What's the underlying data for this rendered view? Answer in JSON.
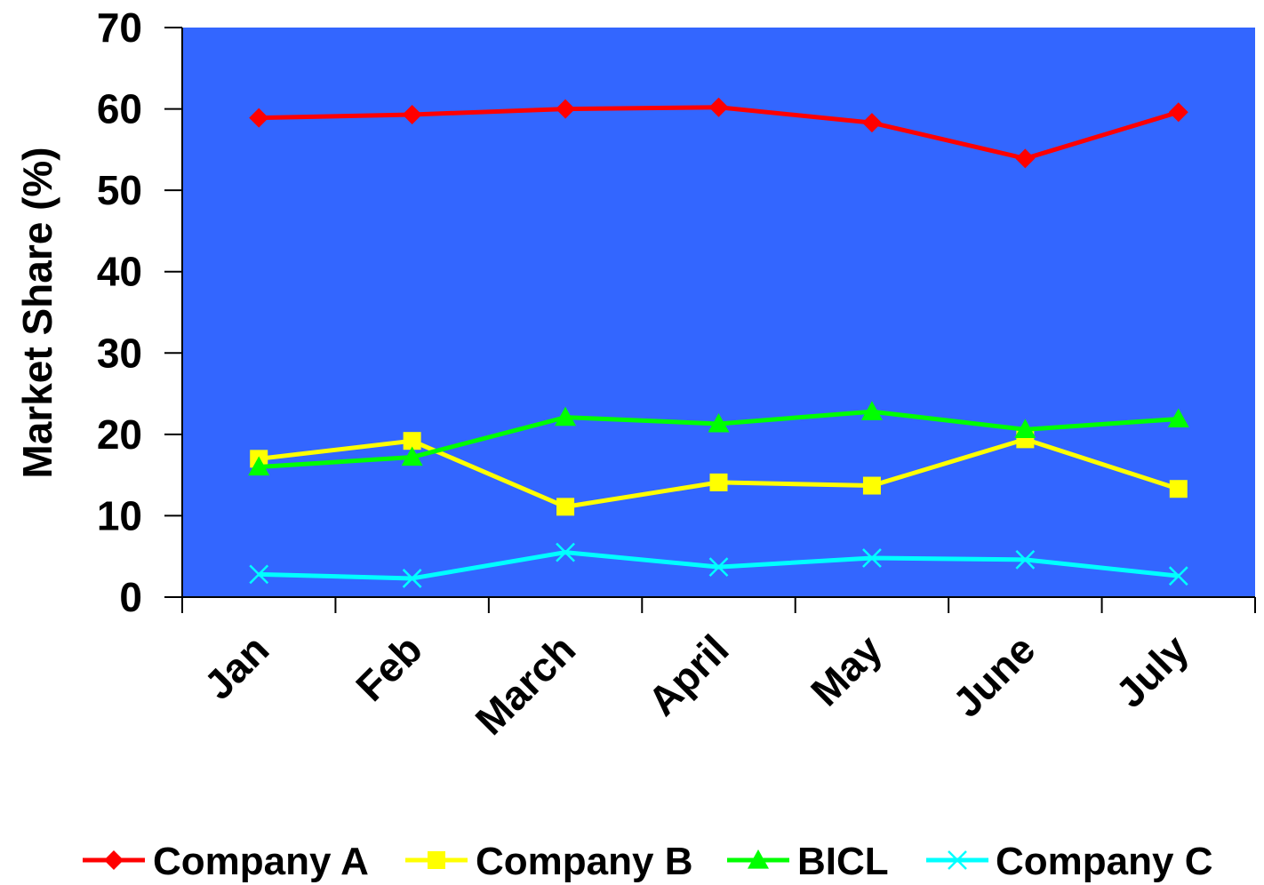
{
  "chart_data": {
    "type": "line",
    "title": "",
    "xlabel": "",
    "ylabel": "Market Share (%)",
    "ylim": [
      0,
      70
    ],
    "yticks": [
      0,
      10,
      20,
      30,
      40,
      50,
      60,
      70
    ],
    "grid": false,
    "legend_position": "bottom",
    "plot_background": "#3366FF",
    "categories": [
      "Jan",
      "Feb",
      "March",
      "April",
      "May",
      "June",
      "July"
    ],
    "series": [
      {
        "name": "Company A",
        "color": "#FF0000",
        "marker": "diamond",
        "values": [
          58.9,
          59.3,
          60.0,
          60.2,
          58.3,
          53.9,
          59.6
        ]
      },
      {
        "name": "Company B",
        "color": "#FFFF00",
        "marker": "square",
        "values": [
          17.0,
          19.2,
          11.1,
          14.1,
          13.7,
          19.4,
          13.3
        ]
      },
      {
        "name": "BICL",
        "color": "#00FF00",
        "marker": "triangle",
        "values": [
          16.0,
          17.2,
          22.1,
          21.3,
          22.8,
          20.6,
          21.9
        ]
      },
      {
        "name": "Company C",
        "color": "#00FFFF",
        "marker": "x",
        "values": [
          2.8,
          2.3,
          5.5,
          3.7,
          4.8,
          4.6,
          2.6
        ]
      }
    ]
  }
}
